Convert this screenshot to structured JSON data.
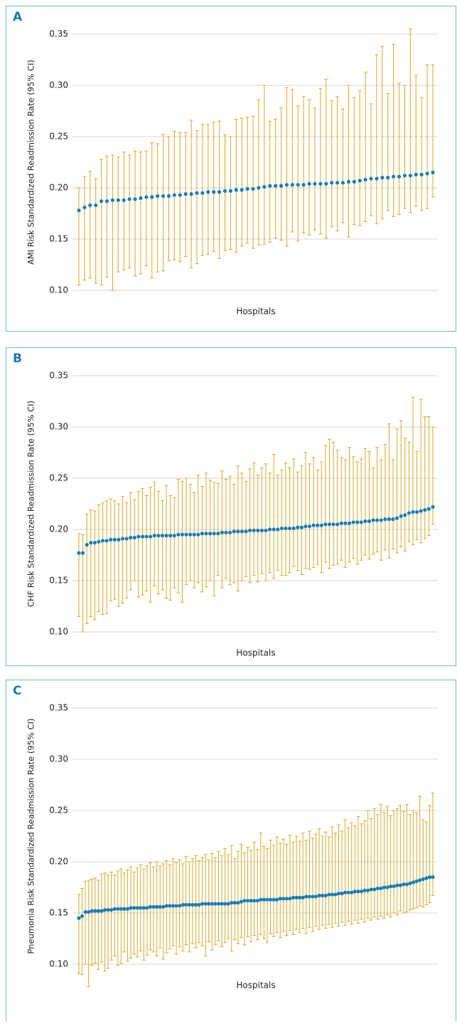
{
  "chart_data": [
    {
      "type": "errorbar",
      "panel_label": "A",
      "y_label": "AMI Risk Standardized Readmission Rate (95% CI)",
      "x_label": "Hospitals",
      "color": "#1a7db5",
      "error_color": "#d6a92b",
      "grid": true,
      "ylim": [
        0.1,
        0.35
      ],
      "yticks": [
        {
          "value": 0.1,
          "label": "0.10"
        },
        0.15,
        {
          "value": 0.2,
          "label": "0.20"
        },
        0.25,
        {
          "value": 0.3,
          "label": "0.30"
        },
        0.35
      ],
      "values": [
        0.178,
        0.181,
        0.183,
        0.183,
        0.187,
        0.187,
        0.188,
        0.188,
        0.188,
        0.189,
        0.189,
        0.19,
        0.191,
        0.191,
        0.192,
        0.192,
        0.192,
        0.193,
        0.193,
        0.194,
        0.194,
        0.195,
        0.195,
        0.196,
        0.196,
        0.196,
        0.197,
        0.197,
        0.198,
        0.198,
        0.199,
        0.199,
        0.2,
        0.201,
        0.202,
        0.202,
        0.202,
        0.203,
        0.203,
        0.203,
        0.203,
        0.204,
        0.204,
        0.204,
        0.204,
        0.205,
        0.205,
        0.205,
        0.206,
        0.206,
        0.207,
        0.208,
        0.209,
        0.209,
        0.21,
        0.21,
        0.211,
        0.211,
        0.212,
        0.212,
        0.213,
        0.213,
        0.214,
        0.215
      ],
      "low": [
        0.105,
        0.11,
        0.112,
        0.107,
        0.105,
        0.113,
        0.1,
        0.118,
        0.12,
        0.122,
        0.114,
        0.116,
        0.124,
        0.112,
        0.118,
        0.119,
        0.129,
        0.13,
        0.128,
        0.133,
        0.122,
        0.126,
        0.134,
        0.135,
        0.138,
        0.131,
        0.139,
        0.14,
        0.137,
        0.143,
        0.146,
        0.141,
        0.144,
        0.145,
        0.147,
        0.151,
        0.149,
        0.143,
        0.157,
        0.148,
        0.156,
        0.154,
        0.159,
        0.155,
        0.151,
        0.162,
        0.158,
        0.166,
        0.152,
        0.164,
        0.163,
        0.167,
        0.173,
        0.165,
        0.17,
        0.178,
        0.172,
        0.174,
        0.18,
        0.176,
        0.182,
        0.178,
        0.18,
        0.191
      ],
      "high": [
        0.2,
        0.211,
        0.216,
        0.209,
        0.228,
        0.231,
        0.232,
        0.23,
        0.235,
        0.232,
        0.236,
        0.235,
        0.236,
        0.244,
        0.243,
        0.252,
        0.25,
        0.255,
        0.254,
        0.254,
        0.266,
        0.256,
        0.262,
        0.262,
        0.264,
        0.265,
        0.252,
        0.25,
        0.267,
        0.268,
        0.269,
        0.27,
        0.286,
        0.3,
        0.265,
        0.267,
        0.278,
        0.298,
        0.296,
        0.28,
        0.289,
        0.286,
        0.278,
        0.297,
        0.306,
        0.285,
        0.289,
        0.277,
        0.3,
        0.288,
        0.295,
        0.313,
        0.282,
        0.33,
        0.338,
        0.292,
        0.34,
        0.302,
        0.3,
        0.355,
        0.31,
        0.288,
        0.32,
        0.32
      ]
    },
    {
      "type": "errorbar",
      "panel_label": "B",
      "y_label": "CHF Risk Standardized Readmission Rate (95% CI)",
      "x_label": "Hospitals",
      "color": "#1a7db5",
      "error_color": "#d6a92b",
      "grid": true,
      "ylim": [
        0.1,
        0.35
      ],
      "yticks": [
        {
          "value": 0.1,
          "label": "0.10"
        },
        0.15,
        {
          "value": 0.2,
          "label": "0.20"
        },
        0.25,
        {
          "value": 0.3,
          "label": "0.30"
        },
        0.35
      ],
      "values": [
        0.177,
        0.177,
        0.185,
        0.187,
        0.187,
        0.188,
        0.189,
        0.189,
        0.19,
        0.19,
        0.19,
        0.191,
        0.191,
        0.192,
        0.192,
        0.193,
        0.193,
        0.193,
        0.193,
        0.194,
        0.194,
        0.194,
        0.194,
        0.194,
        0.194,
        0.195,
        0.195,
        0.195,
        0.195,
        0.195,
        0.195,
        0.196,
        0.196,
        0.196,
        0.196,
        0.196,
        0.197,
        0.197,
        0.197,
        0.198,
        0.198,
        0.198,
        0.198,
        0.199,
        0.199,
        0.199,
        0.199,
        0.199,
        0.2,
        0.2,
        0.2,
        0.201,
        0.201,
        0.201,
        0.201,
        0.202,
        0.202,
        0.203,
        0.203,
        0.204,
        0.204,
        0.204,
        0.205,
        0.205,
        0.205,
        0.205,
        0.206,
        0.206,
        0.206,
        0.207,
        0.207,
        0.207,
        0.208,
        0.208,
        0.209,
        0.209,
        0.209,
        0.21,
        0.21,
        0.21,
        0.211,
        0.213,
        0.214,
        0.216,
        0.217,
        0.217,
        0.218,
        0.219,
        0.22,
        0.222
      ],
      "low": [
        0.115,
        0.1,
        0.108,
        0.115,
        0.112,
        0.12,
        0.117,
        0.118,
        0.13,
        0.132,
        0.125,
        0.128,
        0.133,
        0.141,
        0.15,
        0.134,
        0.136,
        0.14,
        0.129,
        0.145,
        0.137,
        0.141,
        0.133,
        0.131,
        0.143,
        0.138,
        0.129,
        0.146,
        0.15,
        0.143,
        0.148,
        0.139,
        0.144,
        0.15,
        0.135,
        0.155,
        0.143,
        0.152,
        0.146,
        0.148,
        0.14,
        0.15,
        0.154,
        0.148,
        0.155,
        0.149,
        0.157,
        0.15,
        0.158,
        0.152,
        0.16,
        0.155,
        0.155,
        0.158,
        0.164,
        0.16,
        0.156,
        0.162,
        0.161,
        0.163,
        0.166,
        0.158,
        0.168,
        0.162,
        0.165,
        0.166,
        0.17,
        0.163,
        0.168,
        0.172,
        0.166,
        0.17,
        0.175,
        0.171,
        0.176,
        0.178,
        0.17,
        0.18,
        0.172,
        0.181,
        0.177,
        0.183,
        0.179,
        0.188,
        0.185,
        0.19,
        0.187,
        0.191,
        0.194,
        0.205
      ],
      "high": [
        0.196,
        0.195,
        0.215,
        0.219,
        0.218,
        0.224,
        0.226,
        0.228,
        0.23,
        0.228,
        0.225,
        0.232,
        0.226,
        0.236,
        0.229,
        0.237,
        0.24,
        0.233,
        0.241,
        0.246,
        0.237,
        0.228,
        0.243,
        0.233,
        0.231,
        0.249,
        0.247,
        0.25,
        0.244,
        0.236,
        0.253,
        0.242,
        0.255,
        0.248,
        0.246,
        0.245,
        0.257,
        0.249,
        0.252,
        0.244,
        0.262,
        0.255,
        0.247,
        0.259,
        0.265,
        0.253,
        0.26,
        0.264,
        0.255,
        0.273,
        0.253,
        0.258,
        0.265,
        0.26,
        0.269,
        0.256,
        0.262,
        0.275,
        0.264,
        0.27,
        0.258,
        0.266,
        0.282,
        0.288,
        0.285,
        0.277,
        0.27,
        0.268,
        0.28,
        0.271,
        0.266,
        0.269,
        0.279,
        0.276,
        0.26,
        0.28,
        0.268,
        0.283,
        0.303,
        0.268,
        0.298,
        0.306,
        0.289,
        0.285,
        0.329,
        0.276,
        0.327,
        0.31,
        0.31,
        0.3
      ]
    },
    {
      "type": "errorbar",
      "panel_label": "C",
      "y_label": "Pneumonia Risk Standardized Readmission Rate (95% CI)",
      "x_label": "Hospitals",
      "color": "#1a7db5",
      "error_color": "#d6a92b",
      "grid": true,
      "ylim": [
        0.1,
        0.35
      ],
      "yticks": [
        {
          "value": 0.1,
          "label": "0.10"
        },
        0.15,
        {
          "value": 0.2,
          "label": "0.20"
        },
        0.25,
        {
          "value": 0.3,
          "label": "0.30"
        },
        0.35
      ],
      "values": [
        0.145,
        0.147,
        0.151,
        0.151,
        0.152,
        0.152,
        0.152,
        0.152,
        0.153,
        0.153,
        0.153,
        0.154,
        0.154,
        0.154,
        0.154,
        0.154,
        0.155,
        0.155,
        0.155,
        0.155,
        0.155,
        0.155,
        0.156,
        0.156,
        0.156,
        0.156,
        0.156,
        0.157,
        0.157,
        0.157,
        0.157,
        0.157,
        0.158,
        0.158,
        0.158,
        0.158,
        0.158,
        0.158,
        0.159,
        0.159,
        0.159,
        0.159,
        0.159,
        0.159,
        0.159,
        0.159,
        0.159,
        0.16,
        0.16,
        0.16,
        0.161,
        0.162,
        0.162,
        0.162,
        0.162,
        0.162,
        0.163,
        0.163,
        0.163,
        0.163,
        0.163,
        0.163,
        0.164,
        0.164,
        0.164,
        0.164,
        0.165,
        0.165,
        0.165,
        0.165,
        0.166,
        0.166,
        0.166,
        0.166,
        0.167,
        0.167,
        0.167,
        0.168,
        0.168,
        0.168,
        0.169,
        0.169,
        0.17,
        0.17,
        0.17,
        0.171,
        0.171,
        0.171,
        0.172,
        0.172,
        0.173,
        0.173,
        0.174,
        0.174,
        0.175,
        0.175,
        0.176,
        0.176,
        0.177,
        0.177,
        0.178,
        0.178,
        0.179,
        0.18,
        0.181,
        0.182,
        0.183,
        0.184,
        0.185,
        0.185
      ],
      "low": [
        0.091,
        0.09,
        0.1,
        0.078,
        0.099,
        0.101,
        0.095,
        0.102,
        0.093,
        0.096,
        0.104,
        0.108,
        0.099,
        0.101,
        0.112,
        0.103,
        0.106,
        0.11,
        0.107,
        0.113,
        0.104,
        0.109,
        0.114,
        0.112,
        0.108,
        0.116,
        0.105,
        0.111,
        0.115,
        0.118,
        0.11,
        0.117,
        0.113,
        0.119,
        0.112,
        0.12,
        0.116,
        0.121,
        0.118,
        0.108,
        0.122,
        0.114,
        0.119,
        0.123,
        0.117,
        0.121,
        0.125,
        0.113,
        0.124,
        0.12,
        0.126,
        0.119,
        0.127,
        0.122,
        0.128,
        0.124,
        0.129,
        0.125,
        0.121,
        0.13,
        0.127,
        0.131,
        0.126,
        0.132,
        0.128,
        0.133,
        0.129,
        0.134,
        0.131,
        0.135,
        0.13,
        0.136,
        0.132,
        0.137,
        0.134,
        0.138,
        0.135,
        0.139,
        0.136,
        0.14,
        0.137,
        0.141,
        0.138,
        0.142,
        0.139,
        0.143,
        0.14,
        0.144,
        0.141,
        0.145,
        0.143,
        0.146,
        0.144,
        0.147,
        0.145,
        0.148,
        0.146,
        0.15,
        0.148,
        0.152,
        0.15,
        0.151,
        0.153,
        0.154,
        0.155,
        0.157,
        0.156,
        0.158,
        0.16,
        0.167
      ],
      "high": [
        0.168,
        0.174,
        0.181,
        0.182,
        0.183,
        0.184,
        0.182,
        0.188,
        0.189,
        0.187,
        0.19,
        0.187,
        0.191,
        0.193,
        0.189,
        0.192,
        0.195,
        0.19,
        0.194,
        0.197,
        0.193,
        0.196,
        0.199,
        0.195,
        0.2,
        0.196,
        0.198,
        0.201,
        0.197,
        0.203,
        0.199,
        0.202,
        0.198,
        0.205,
        0.2,
        0.203,
        0.206,
        0.201,
        0.204,
        0.207,
        0.202,
        0.208,
        0.204,
        0.21,
        0.206,
        0.213,
        0.207,
        0.216,
        0.203,
        0.21,
        0.217,
        0.209,
        0.214,
        0.211,
        0.219,
        0.212,
        0.228,
        0.215,
        0.213,
        0.221,
        0.216,
        0.224,
        0.218,
        0.222,
        0.217,
        0.226,
        0.219,
        0.225,
        0.22,
        0.228,
        0.221,
        0.23,
        0.223,
        0.227,
        0.232,
        0.225,
        0.229,
        0.224,
        0.234,
        0.228,
        0.236,
        0.23,
        0.241,
        0.233,
        0.238,
        0.235,
        0.244,
        0.237,
        0.24,
        0.25,
        0.242,
        0.252,
        0.246,
        0.256,
        0.248,
        0.254,
        0.245,
        0.25,
        0.252,
        0.255,
        0.249,
        0.256,
        0.246,
        0.25,
        0.248,
        0.264,
        0.241,
        0.239,
        0.255,
        0.267
      ]
    }
  ]
}
